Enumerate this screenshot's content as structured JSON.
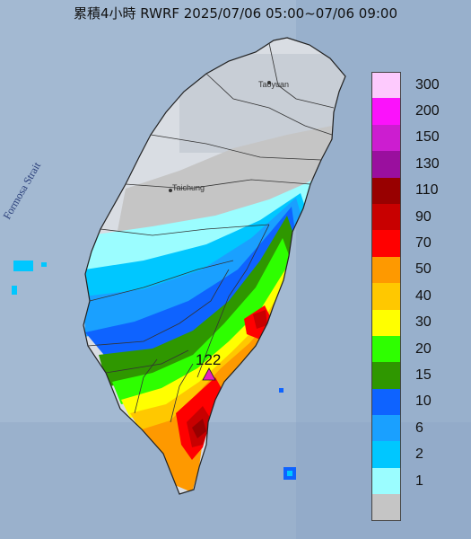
{
  "header": {
    "title": "累積4小時 RWRF 2025/07/06 05:00~07/06 09:00"
  },
  "map": {
    "strait_label": "Formosa Strait",
    "city_labels": [
      "Taoyuan",
      "Taichung"
    ],
    "peak": {
      "label": "122",
      "marker_color": "#e81fbe"
    }
  },
  "legend": {
    "items": [
      {
        "label": "300",
        "color": "#fdcafd"
      },
      {
        "label": "200",
        "color": "#fb12fb"
      },
      {
        "label": "150",
        "color": "#cc1dd0"
      },
      {
        "label": "130",
        "color": "#9a0f9e"
      },
      {
        "label": "110",
        "color": "#980000"
      },
      {
        "label": "90",
        "color": "#c80000"
      },
      {
        "label": "70",
        "color": "#ff0000"
      },
      {
        "label": "50",
        "color": "#fe9900"
      },
      {
        "label": "40",
        "color": "#ffc800"
      },
      {
        "label": "30",
        "color": "#ffff00"
      },
      {
        "label": "20",
        "color": "#2eff00"
      },
      {
        "label": "15",
        "color": "#2f9700"
      },
      {
        "label": "10",
        "color": "#0e63ff"
      },
      {
        "label": "6",
        "color": "#1aa0ff"
      },
      {
        "label": "2",
        "color": "#00c7ff"
      },
      {
        "label": "1",
        "color": "#9bfdff"
      },
      {
        "label": "",
        "color": "#c5c5c5"
      }
    ]
  }
}
